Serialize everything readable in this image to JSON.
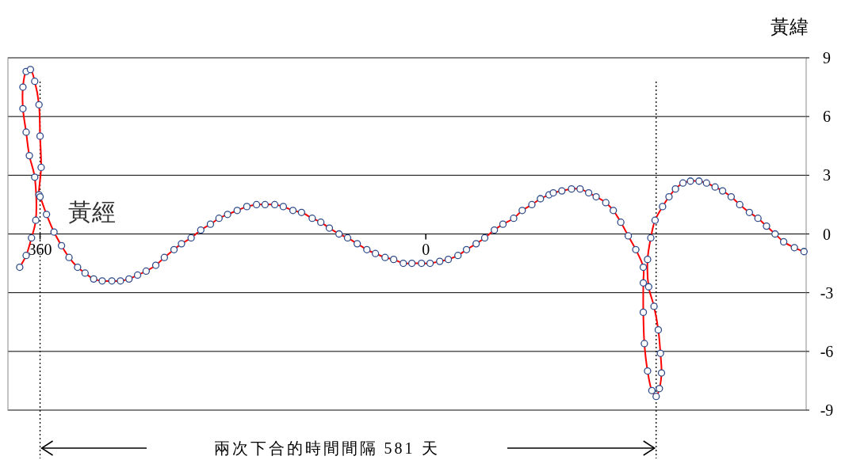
{
  "chart_data": {
    "type": "line",
    "xlabel": "黃經",
    "ylabel": "黃緯",
    "annotations": [
      "兩次下合的時間間隔 581 天"
    ],
    "xlim": [
      390,
      -355
    ],
    "xticks": [
      360,
      0
    ],
    "ylim": [
      -9,
      9
    ],
    "yticks": [
      -9,
      -6,
      -3,
      0,
      3,
      6,
      9
    ],
    "grid": "y",
    "marker": "circle",
    "line_style": "solid",
    "ref_lines": [
      {
        "axis": "x",
        "value": 360,
        "color": "#000000",
        "line_style": "dotted"
      },
      {
        "axis": "x",
        "value": -215,
        "color": "#000000",
        "line_style": "dotted"
      }
    ],
    "series": [
      {
        "color": "#ff0000",
        "x": [
          379,
          373,
          368,
          364,
          365,
          370,
          373,
          376,
          376,
          373,
          369,
          365,
          361,
          360,
          359,
          361,
          360,
          354,
          347,
          340,
          333,
          325,
          318,
          310,
          302,
          293,
          285,
          277,
          269,
          261,
          252,
          244,
          235,
          228,
          219,
          210,
          201,
          193,
          185,
          176,
          167,
          158,
          150,
          141,
          133,
          124,
          116,
          106,
          98,
          90,
          81,
          73,
          64,
          55,
          47,
          38,
          30,
          21,
          13,
          4,
          -4,
          -13,
          -21,
          -30,
          -38,
          -47,
          -55,
          -64,
          -72,
          -82,
          -90,
          -99,
          -107,
          -115,
          -119,
          -127,
          -136,
          -144,
          -152,
          -159,
          -168,
          -175,
          -182,
          -189,
          -196,
          -203,
          -203,
          -203,
          -204,
          -207,
          -211,
          -215,
          -218,
          -220,
          -219,
          -217,
          -213,
          -208,
          -207,
          -210,
          -214,
          -221,
          -227,
          -233,
          -240,
          -247,
          -255,
          -262,
          -270,
          -277,
          -285,
          -293,
          -302,
          -310,
          -318,
          -326,
          -334,
          -344,
          -353
        ],
        "values": [
          -1.7,
          -1.1,
          -0.2,
          0.7,
          2.9,
          4.0,
          5.2,
          6.4,
          7.5,
          8.3,
          8.4,
          7.8,
          6.6,
          5.0,
          3.4,
          2.0,
          1.9,
          1.0,
          0.1,
          -0.6,
          -1.2,
          -1.7,
          -2.0,
          -2.3,
          -2.4,
          -2.4,
          -2.4,
          -2.3,
          -2.1,
          -1.9,
          -1.6,
          -1.2,
          -0.8,
          -0.5,
          -0.2,
          0.2,
          0.5,
          0.8,
          1.0,
          1.2,
          1.4,
          1.5,
          1.5,
          1.5,
          1.4,
          1.2,
          1.1,
          0.8,
          0.6,
          0.3,
          0.0,
          -0.2,
          -0.5,
          -0.8,
          -1.0,
          -1.2,
          -1.3,
          -1.5,
          -1.5,
          -1.5,
          -1.5,
          -1.4,
          -1.3,
          -1.1,
          -0.8,
          -0.5,
          -0.2,
          0.2,
          0.5,
          0.8,
          1.2,
          1.5,
          1.8,
          2.0,
          2.1,
          2.2,
          2.3,
          2.3,
          2.1,
          1.9,
          1.6,
          1.2,
          0.6,
          -0.1,
          -0.8,
          -1.7,
          -2.5,
          -4.0,
          -5.6,
          -7.0,
          -8.0,
          -8.3,
          -7.9,
          -7.1,
          -6.1,
          -4.9,
          -3.7,
          -2.7,
          -1.3,
          -0.2,
          0.7,
          1.4,
          1.9,
          2.3,
          2.6,
          2.7,
          2.7,
          2.6,
          2.4,
          2.2,
          1.9,
          1.5,
          1.1,
          0.8,
          0.4,
          0.0,
          -0.4,
          -0.7,
          -0.9
        ]
      }
    ]
  }
}
